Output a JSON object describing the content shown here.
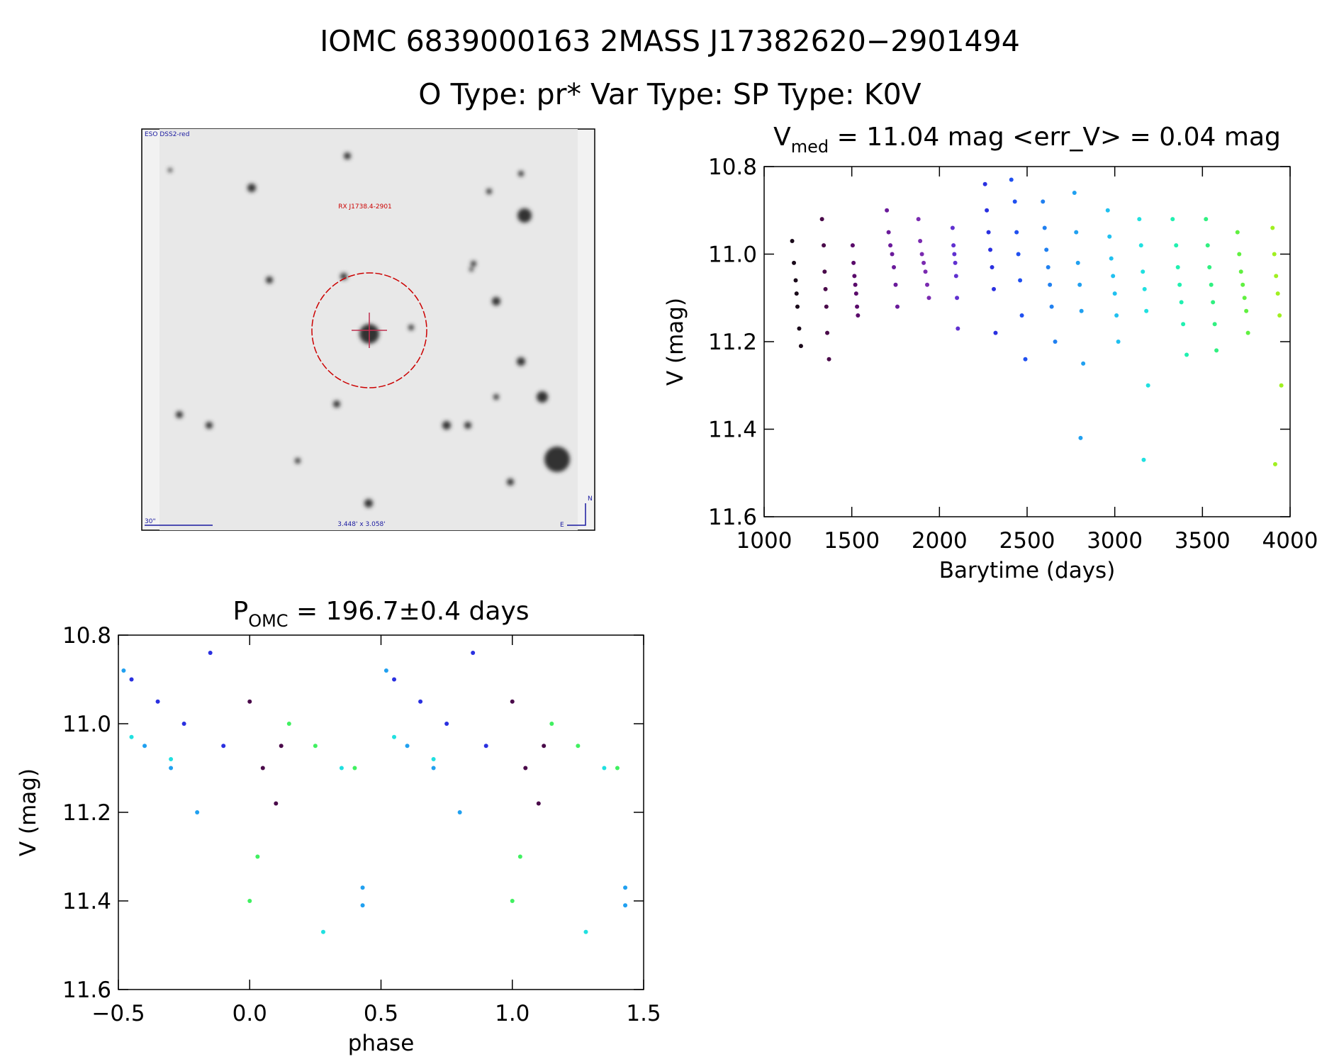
{
  "header": {
    "title": "IOMC 6839000163   2MASS J17382620−2901494",
    "subtitle": "O Type: pr*  Var Type:    SP Type: K0V"
  },
  "image": {
    "survey": "ESO DSS2-red",
    "target": "RX J1738.4-2901",
    "scale": "30\"",
    "size": "3.448' x 3.058'",
    "north": "N",
    "east": "E"
  },
  "chart_data": [
    {
      "type": "scatter",
      "title": {
        "main": "V",
        "sub": "med",
        "rest": " = 11.04 mag <err_V> = 0.04 mag"
      },
      "xlabel": "Barytime (days)",
      "ylabel": "V (mag)",
      "xlim": [
        1000,
        4000
      ],
      "xticks": [
        1000,
        1500,
        2000,
        2500,
        3000,
        3500,
        4000
      ],
      "ylim": [
        10.8,
        11.6
      ],
      "y_inverted": true,
      "yticks": [
        10.8,
        {
          "value": 11,
          "label": "11.0"
        },
        11.2,
        11.4,
        11.6
      ],
      "series": [
        {
          "color": "#1a0a1a",
          "x": [
            1160,
            1170,
            1180,
            1185,
            1190,
            1200,
            1210
          ],
          "values": [
            10.97,
            11.02,
            11.06,
            11.09,
            11.12,
            11.17,
            11.21
          ]
        },
        {
          "color": "#4a0a4a",
          "x": [
            1330,
            1340,
            1345,
            1350,
            1355,
            1360,
            1370
          ],
          "values": [
            10.92,
            10.98,
            11.04,
            11.08,
            11.12,
            11.18,
            11.24
          ]
        },
        {
          "color": "#5a0a6a",
          "x": [
            1505,
            1510,
            1515,
            1520,
            1525,
            1530,
            1535
          ],
          "values": [
            10.98,
            11.02,
            11.05,
            11.07,
            11.09,
            11.12,
            11.14
          ]
        },
        {
          "color": "#6a1a9a",
          "x": [
            1700,
            1710,
            1720,
            1730,
            1740,
            1750,
            1760
          ],
          "values": [
            10.9,
            10.95,
            10.98,
            11.0,
            11.03,
            11.07,
            11.12
          ]
        },
        {
          "color": "#7a2ab0",
          "x": [
            1880,
            1890,
            1900,
            1910,
            1920,
            1930,
            1940
          ],
          "values": [
            10.92,
            10.97,
            11.0,
            11.02,
            11.04,
            11.07,
            11.1
          ]
        },
        {
          "color": "#6030d0",
          "x": [
            2075,
            2080,
            2085,
            2090,
            2095,
            2100,
            2105
          ],
          "values": [
            10.94,
            10.98,
            11.0,
            11.02,
            11.05,
            11.1,
            11.17
          ]
        },
        {
          "color": "#2a30e0",
          "x": [
            2260,
            2270,
            2280,
            2290,
            2300,
            2310,
            2320
          ],
          "values": [
            10.84,
            10.9,
            10.95,
            10.99,
            11.03,
            11.08,
            11.18
          ]
        },
        {
          "color": "#2050f0",
          "x": [
            2410,
            2430,
            2440,
            2450,
            2460,
            2470,
            2490
          ],
          "values": [
            10.83,
            10.88,
            10.95,
            11.0,
            11.06,
            11.14,
            11.24
          ]
        },
        {
          "color": "#2080f0",
          "x": [
            2590,
            2600,
            2610,
            2620,
            2630,
            2640,
            2660
          ],
          "values": [
            10.88,
            10.94,
            10.99,
            11.03,
            11.07,
            11.12,
            11.2
          ]
        },
        {
          "color": "#20a0f0",
          "x": [
            2770,
            2780,
            2790,
            2800,
            2810,
            2820,
            2805
          ],
          "values": [
            10.86,
            10.95,
            11.02,
            11.07,
            11.13,
            11.25,
            11.42
          ]
        },
        {
          "color": "#20c0f0",
          "x": [
            2960,
            2970,
            2980,
            2990,
            3000,
            3010,
            3020
          ],
          "values": [
            10.9,
            10.96,
            11.01,
            11.05,
            11.09,
            11.14,
            11.2
          ]
        },
        {
          "color": "#20e0e0",
          "x": [
            3140,
            3150,
            3160,
            3170,
            3180,
            3190,
            3165
          ],
          "values": [
            10.92,
            10.98,
            11.04,
            11.08,
            11.13,
            11.3,
            11.47
          ]
        },
        {
          "color": "#20f0b0",
          "x": [
            3330,
            3350,
            3360,
            3370,
            3380,
            3390,
            3410
          ],
          "values": [
            10.92,
            10.98,
            11.03,
            11.07,
            11.11,
            11.16,
            11.23
          ]
        },
        {
          "color": "#30f080",
          "x": [
            3520,
            3530,
            3540,
            3550,
            3560,
            3570,
            3580
          ],
          "values": [
            10.92,
            10.98,
            11.03,
            11.07,
            11.11,
            11.16,
            11.22
          ]
        },
        {
          "color": "#60f040",
          "x": [
            3700,
            3710,
            3720,
            3730,
            3740,
            3750,
            3760
          ],
          "values": [
            10.95,
            11.0,
            11.04,
            11.07,
            11.1,
            11.13,
            11.18
          ]
        },
        {
          "color": "#a0f020",
          "x": [
            3900,
            3910,
            3920,
            3930,
            3940,
            3950,
            3915
          ],
          "values": [
            10.94,
            11.0,
            11.05,
            11.09,
            11.14,
            11.3,
            11.48
          ]
        }
      ]
    },
    {
      "type": "scatter",
      "title": {
        "main": "P",
        "sub": "OMC",
        "rest": " = 196.7±0.4 days"
      },
      "xlabel": "phase",
      "ylabel": "V (mag)",
      "xlim": [
        -0.5,
        1.5
      ],
      "xticks": [
        {
          "value": -0.5,
          "label": "−0.5"
        },
        {
          "value": 0,
          "label": "0.0"
        },
        0.5,
        {
          "value": 1,
          "label": "1.0"
        },
        1.5
      ],
      "ylim": [
        10.8,
        11.6
      ],
      "y_inverted": true,
      "yticks": [
        10.8,
        {
          "value": 11,
          "label": "11.0"
        },
        11.2,
        11.4,
        11.6
      ],
      "series": [
        {
          "color": "#2a30e0",
          "x": [
            -0.45,
            -0.35,
            -0.25,
            -0.15,
            -0.1,
            0.55,
            0.65,
            0.75,
            0.85,
            0.9
          ],
          "values": [
            10.9,
            10.95,
            11.0,
            10.84,
            11.05,
            10.9,
            10.95,
            11.0,
            10.84,
            11.05
          ]
        },
        {
          "color": "#20a0f0",
          "x": [
            -0.48,
            -0.4,
            -0.3,
            -0.2,
            0.43,
            0.43,
            0.52,
            0.6,
            0.7,
            0.8,
            1.43,
            1.43
          ],
          "values": [
            10.88,
            11.05,
            11.1,
            11.2,
            11.37,
            11.41,
            10.88,
            11.05,
            11.1,
            11.2,
            11.37,
            11.41
          ]
        },
        {
          "color": "#20e0e0",
          "x": [
            -0.45,
            -0.3,
            0.28,
            0.35,
            0.55,
            0.7,
            1.28,
            1.35
          ],
          "values": [
            11.03,
            11.08,
            11.47,
            11.1,
            11.03,
            11.08,
            11.47,
            11.1
          ]
        },
        {
          "color": "#4a0a4a",
          "x": [
            0.0,
            0.05,
            0.1,
            0.12,
            1.0,
            1.05,
            1.1,
            1.12
          ],
          "values": [
            10.95,
            11.1,
            11.18,
            11.05,
            10.95,
            11.1,
            11.18,
            11.05
          ]
        },
        {
          "color": "#40f060",
          "x": [
            0.0,
            0.03,
            0.15,
            0.25,
            0.4,
            1.0,
            1.03,
            1.15,
            1.25,
            1.4
          ],
          "values": [
            11.4,
            11.3,
            11.0,
            11.05,
            11.1,
            11.4,
            11.3,
            11.0,
            11.05,
            11.1
          ]
        }
      ]
    }
  ]
}
